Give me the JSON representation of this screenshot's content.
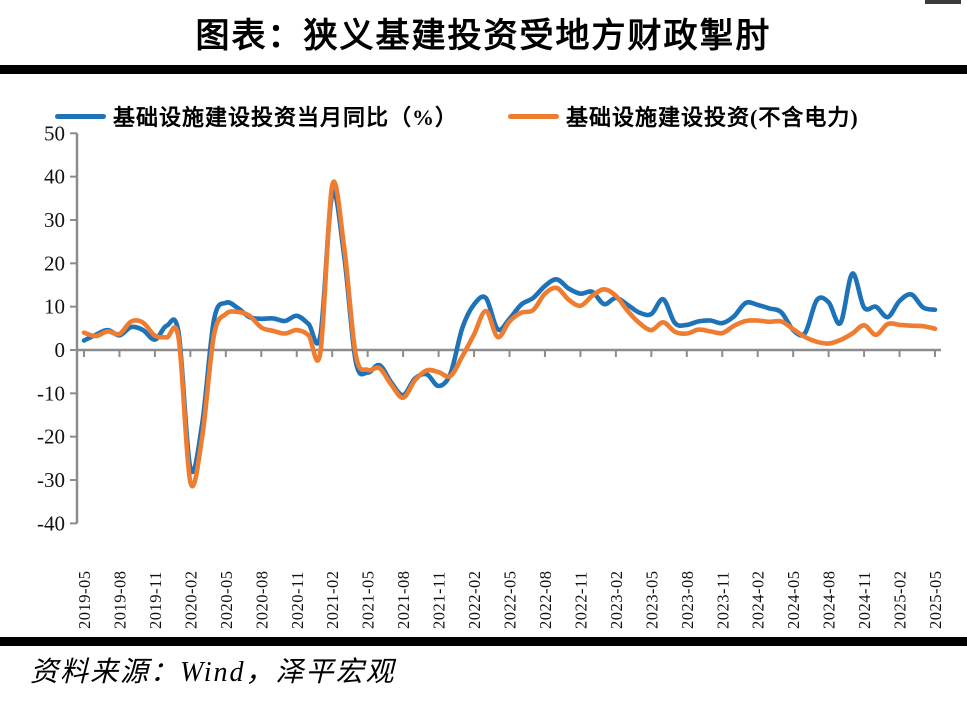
{
  "page": {
    "title": "图表：狭义基建投资受地方财政掣肘",
    "source": "资料来源：Wind，泽平宏观"
  },
  "legend": [
    {
      "label": "基础设施建设投资当月同比（%）",
      "color": "#1e73b8"
    },
    {
      "label": "基础设施建设投资(不含电力)",
      "color": "#ee7d31"
    }
  ],
  "chart_data": {
    "type": "line",
    "title": "图表：狭义基建投资受地方财政掣肘",
    "x": [
      "2019-05",
      "2019-06",
      "2019-07",
      "2019-08",
      "2019-09",
      "2019-10",
      "2019-11",
      "2019-12",
      "2020-01",
      "2020-02",
      "2020-03",
      "2020-04",
      "2020-05",
      "2020-06",
      "2020-07",
      "2020-08",
      "2020-09",
      "2020-10",
      "2020-11",
      "2020-12",
      "2021-01",
      "2021-02",
      "2021-03",
      "2021-04",
      "2021-05",
      "2021-06",
      "2021-07",
      "2021-08",
      "2021-09",
      "2021-10",
      "2021-11",
      "2021-12",
      "2022-01",
      "2022-02",
      "2022-03",
      "2022-04",
      "2022-05",
      "2022-06",
      "2022-07",
      "2022-08",
      "2022-09",
      "2022-10",
      "2022-11",
      "2022-12",
      "2023-01",
      "2023-02",
      "2023-03",
      "2023-04",
      "2023-05",
      "2023-06",
      "2023-07",
      "2023-08",
      "2023-09",
      "2023-10",
      "2023-11",
      "2023-12",
      "2024-01",
      "2024-02",
      "2024-03",
      "2024-04",
      "2024-05",
      "2024-06",
      "2024-07",
      "2024-08",
      "2024-09",
      "2024-10",
      "2024-11",
      "2024-12",
      "2025-01",
      "2025-02",
      "2025-03",
      "2025-04",
      "2025-05"
    ],
    "tick_interval": 3,
    "series": [
      {
        "name": "基础设施建设投资当月同比（%）",
        "color": "#1e73b8",
        "values": [
          2.2,
          3.5,
          4.6,
          3.4,
          5.3,
          4.6,
          2.4,
          5.6,
          4.0,
          -27.3,
          -17.0,
          7.0,
          10.9,
          9.7,
          7.6,
          7.2,
          7.3,
          6.7,
          7.9,
          6.0,
          3.3,
          36.0,
          22.0,
          -2.7,
          -5.2,
          -3.5,
          -7.5,
          -10.4,
          -6.6,
          -5.6,
          -8.3,
          -5.5,
          5.0,
          10.5,
          12.0,
          4.8,
          7.2,
          10.5,
          12.0,
          14.8,
          16.3,
          14.2,
          13.0,
          13.4,
          10.6,
          12.0,
          10.4,
          8.6,
          8.3,
          11.7,
          6.2,
          5.8,
          6.6,
          6.8,
          6.2,
          7.8,
          10.9,
          10.4,
          9.6,
          8.7,
          4.6,
          3.9,
          11.5,
          11.0,
          6.2,
          17.6,
          9.8,
          10.0,
          7.6,
          11.3,
          12.8,
          9.8,
          9.3
        ]
      },
      {
        "name": "基础设施建设投资(不含电力)",
        "color": "#ee7d31",
        "values": [
          4.0,
          3.2,
          4.3,
          3.7,
          6.6,
          6.3,
          3.3,
          2.9,
          2.7,
          -30.5,
          -20.0,
          3.5,
          8.3,
          8.8,
          7.9,
          5.2,
          4.4,
          3.8,
          4.6,
          3.4,
          -0.5,
          38.0,
          24.0,
          -1.2,
          -4.6,
          -4.2,
          -8.0,
          -11.0,
          -7.0,
          -4.7,
          -5.1,
          -6.0,
          -1.5,
          3.6,
          9.0,
          3.0,
          6.6,
          8.6,
          9.2,
          13.0,
          14.3,
          11.6,
          10.2,
          12.5,
          14.0,
          12.5,
          9.0,
          6.2,
          4.6,
          6.4,
          4.2,
          3.8,
          4.7,
          4.3,
          3.9,
          5.6,
          6.7,
          6.8,
          6.5,
          6.6,
          4.8,
          3.0,
          1.9,
          1.5,
          2.3,
          3.8,
          5.7,
          3.5,
          6.0,
          5.8,
          5.6,
          5.5,
          4.9
        ]
      }
    ],
    "ylim": [
      -40,
      50
    ],
    "y_tick_step": 10,
    "grid": false,
    "legend_position": "top",
    "axis_color": "#8c8c8c",
    "tick_label_color": "#111111"
  }
}
